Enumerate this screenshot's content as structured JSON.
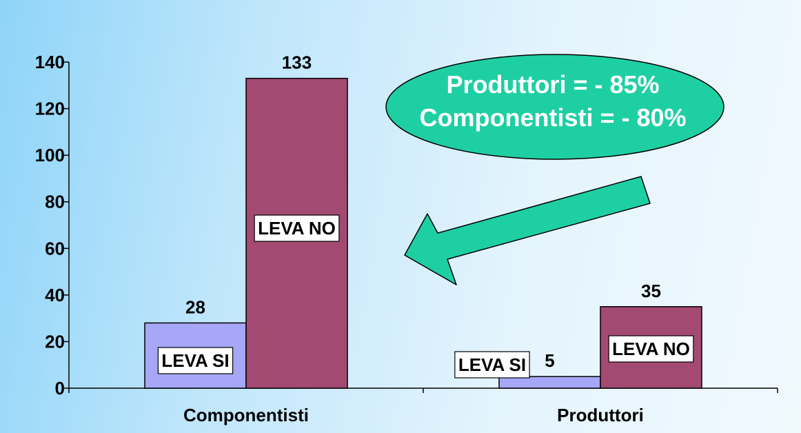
{
  "chart_data": {
    "type": "bar",
    "categories": [
      "Componentisti",
      "Produttori"
    ],
    "series": [
      {
        "name": "LEVA SI",
        "values": [
          28,
          5
        ],
        "color": "#a7a7f8"
      },
      {
        "name": "LEVA NO",
        "values": [
          133,
          35
        ],
        "color": "#a34a72"
      }
    ],
    "value_labels": [
      [
        "28",
        "5"
      ],
      [
        "133",
        "35"
      ]
    ],
    "series_tags": [
      [
        "LEVA SI",
        "LEVA SI"
      ],
      [
        "LEVA NO",
        "LEVA NO"
      ]
    ],
    "ylim": [
      0,
      140
    ],
    "yticks": [
      {
        "value": 0,
        "label": "0"
      },
      {
        "value": 20,
        "label": "20"
      },
      {
        "value": 40,
        "label": "40"
      },
      {
        "value": 60,
        "label": "60"
      },
      {
        "value": 80,
        "label": "80"
      },
      {
        "value": 100,
        "label": "100"
      },
      {
        "value": 120,
        "label": "120"
      },
      {
        "value": 140,
        "label": "140"
      }
    ],
    "grid": false,
    "legend": "none",
    "title": "",
    "xlabel": "",
    "ylabel": ""
  },
  "callout": {
    "lines": [
      "Produttori = - 85%",
      "Componentisti = - 80%"
    ],
    "fill_color": "#1fcfa4",
    "arrow_color": "#1fcfa4"
  },
  "colors": {
    "background": "#bfe6fb",
    "axis": "#000000",
    "tag_background": "#ffffff"
  }
}
